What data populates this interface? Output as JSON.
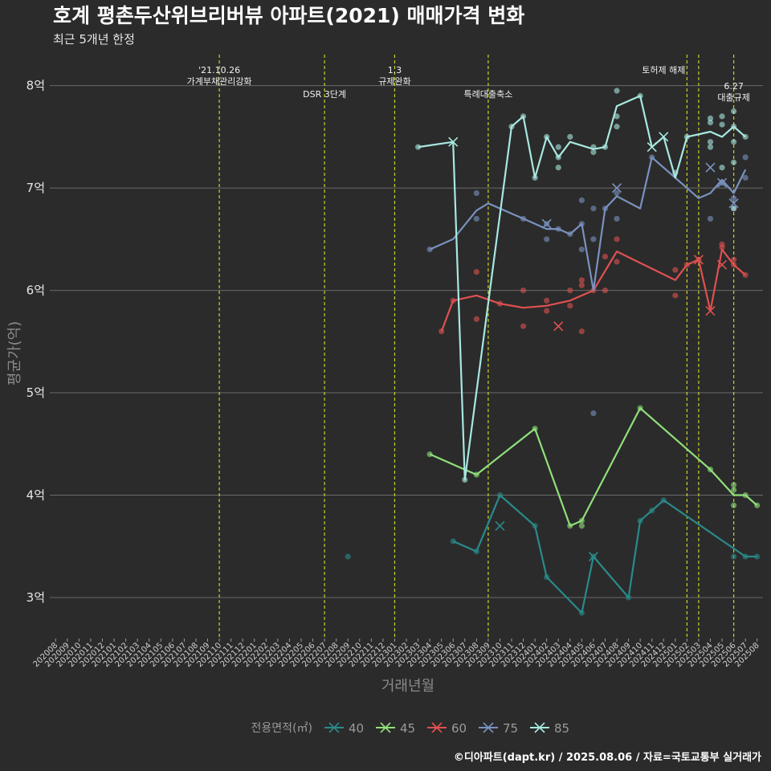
{
  "header": {
    "title": "호계 평촌두산위브리버뷰 아파트(2021) 매매가격 변화",
    "subtitle": "최근 5개년 한정"
  },
  "caption": "©디아파트(dapt.kr) / 2025.08.06 / 자료=국토교통부 실거래가",
  "chart_data": {
    "type": "line",
    "xlabel": "거래년월",
    "ylabel": "평균가(억)",
    "ylim": [
      2.6,
      8.35
    ],
    "yticks": [
      3,
      4,
      5,
      6,
      7,
      8
    ],
    "ytick_labels": [
      "3억",
      "4억",
      "5억",
      "6억",
      "7억",
      "8억"
    ],
    "x_categories": [
      "202008",
      "202009",
      "202010",
      "202011",
      "202012",
      "202101",
      "202102",
      "202103",
      "202104",
      "202105",
      "202106",
      "202107",
      "202108",
      "202109",
      "202110",
      "202111",
      "202112",
      "202201",
      "202202",
      "202203",
      "202204",
      "202205",
      "202206",
      "202207",
      "202208",
      "202209",
      "202210",
      "202211",
      "202212",
      "202301",
      "202302",
      "202303",
      "202304",
      "202305",
      "202306",
      "202307",
      "202308",
      "202309",
      "202310",
      "202311",
      "202312",
      "202401",
      "202402",
      "202403",
      "202404",
      "202405",
      "202406",
      "202407",
      "202408",
      "202409",
      "202410",
      "202411",
      "202412",
      "202501",
      "202502",
      "202503",
      "202504",
      "202505",
      "202506",
      "202507",
      "202508"
    ],
    "events": [
      {
        "x": "202110",
        "label": "'21.10.26\n가계부채관리강화",
        "row": 0
      },
      {
        "x": "202207",
        "label": "DSR 3단계",
        "row": 1
      },
      {
        "x": "202301",
        "label": "1.3\n규제완화",
        "row": 0
      },
      {
        "x": "202309",
        "label": "특례대출축소",
        "row": 1
      },
      {
        "x": "202502",
        "label": "토허제 해제",
        "row": 0,
        "anchor": "end"
      },
      {
        "x": "202503",
        "label": "",
        "row": 0
      },
      {
        "x": "202506",
        "label": "6.27\n대출규제",
        "row": 2
      }
    ],
    "legend_title": "전용면적(㎡)",
    "series": [
      {
        "name": "40",
        "color": "#2a8a8a",
        "line": [
          [
            "202306",
            3.55
          ],
          [
            "202308",
            3.45
          ],
          [
            "202310",
            4.0
          ],
          [
            "202401",
            3.7
          ],
          [
            "202402",
            3.2
          ],
          [
            "202405",
            2.85
          ],
          [
            "202406",
            3.4
          ],
          [
            "202409",
            3.0
          ],
          [
            "202410",
            3.75
          ],
          [
            "202411",
            3.85
          ],
          [
            "202412",
            3.95
          ],
          [
            "202507",
            3.4
          ],
          [
            "202508",
            3.4
          ]
        ],
        "points": [
          [
            "202209",
            3.4
          ],
          [
            "202306",
            3.55
          ],
          [
            "202308",
            3.45
          ],
          [
            "202310",
            4.0
          ],
          [
            "202401",
            3.7
          ],
          [
            "202402",
            3.2
          ],
          [
            "202405",
            2.85
          ],
          [
            "202406",
            3.4
          ],
          [
            "202409",
            3.0
          ],
          [
            "202410",
            3.75
          ],
          [
            "202411",
            3.85
          ],
          [
            "202412",
            3.95
          ],
          [
            "202506",
            3.4
          ],
          [
            "202507",
            3.4
          ],
          [
            "202508",
            3.4
          ]
        ],
        "crosses": [
          [
            "202310",
            3.7
          ],
          [
            "202406",
            3.4
          ]
        ]
      },
      {
        "name": "45",
        "color": "#90e07a",
        "line": [
          [
            "202304",
            4.4
          ],
          [
            "202307",
            4.25
          ],
          [
            "202308",
            4.2
          ],
          [
            "202401",
            4.65
          ],
          [
            "202404",
            3.7
          ],
          [
            "202405",
            3.75
          ],
          [
            "202410",
            4.85
          ],
          [
            "202504",
            4.25
          ],
          [
            "202506",
            4.0
          ],
          [
            "202507",
            4.0
          ],
          [
            "202508",
            3.9
          ]
        ],
        "points": [
          [
            "202304",
            4.4
          ],
          [
            "202308",
            4.2
          ],
          [
            "202401",
            4.65
          ],
          [
            "202404",
            3.7
          ],
          [
            "202405",
            3.7
          ],
          [
            "202405",
            3.75
          ],
          [
            "202410",
            4.85
          ],
          [
            "202504",
            4.25
          ],
          [
            "202506",
            3.9
          ],
          [
            "202506",
            4.05
          ],
          [
            "202506",
            4.1
          ],
          [
            "202507",
            4.0
          ],
          [
            "202508",
            3.9
          ]
        ],
        "crosses": []
      },
      {
        "name": "60",
        "color": "#e05050",
        "line": [
          [
            "202305",
            5.6
          ],
          [
            "202306",
            5.9
          ],
          [
            "202308",
            5.95
          ],
          [
            "202310",
            5.87
          ],
          [
            "202312",
            5.83
          ],
          [
            "202402",
            5.85
          ],
          [
            "202404",
            5.9
          ],
          [
            "202406",
            6.0
          ],
          [
            "202408",
            6.38
          ],
          [
            "202501",
            6.1
          ],
          [
            "202502",
            6.25
          ],
          [
            "202503",
            6.3
          ],
          [
            "202504",
            5.8
          ],
          [
            "202505",
            6.4
          ],
          [
            "202506",
            6.25
          ],
          [
            "202507",
            6.15
          ]
        ],
        "points": [
          [
            "202305",
            5.6
          ],
          [
            "202306",
            5.9
          ],
          [
            "202308",
            6.18
          ],
          [
            "202308",
            5.72
          ],
          [
            "202310",
            5.87
          ],
          [
            "202312",
            6.0
          ],
          [
            "202312",
            5.65
          ],
          [
            "202402",
            5.9
          ],
          [
            "202402",
            5.8
          ],
          [
            "202404",
            6.0
          ],
          [
            "202404",
            5.85
          ],
          [
            "202405",
            6.1
          ],
          [
            "202405",
            5.6
          ],
          [
            "202405",
            6.05
          ],
          [
            "202406",
            6.0
          ],
          [
            "202407",
            6.33
          ],
          [
            "202407",
            6.0
          ],
          [
            "202408",
            6.5
          ],
          [
            "202408",
            6.28
          ],
          [
            "202501",
            6.2
          ],
          [
            "202501",
            5.95
          ],
          [
            "202502",
            6.25
          ],
          [
            "202503",
            6.3
          ],
          [
            "202505",
            6.45
          ],
          [
            "202505",
            6.42
          ],
          [
            "202506",
            6.3
          ],
          [
            "202506",
            6.25
          ],
          [
            "202507",
            6.15
          ]
        ],
        "crosses": [
          [
            "202403",
            5.65
          ],
          [
            "202503",
            6.3
          ],
          [
            "202504",
            5.8
          ],
          [
            "202505",
            6.25
          ]
        ]
      },
      {
        "name": "75",
        "color": "#7a92c0",
        "line": [
          [
            "202304",
            6.4
          ],
          [
            "202306",
            6.5
          ],
          [
            "202308",
            6.78
          ],
          [
            "202309",
            6.85
          ],
          [
            "202312",
            6.7
          ],
          [
            "202402",
            6.6
          ],
          [
            "202403",
            6.6
          ],
          [
            "202404",
            6.55
          ],
          [
            "202405",
            6.65
          ],
          [
            "202406",
            6.0
          ],
          [
            "202407",
            6.8
          ],
          [
            "202408",
            6.92
          ],
          [
            "202410",
            6.8
          ],
          [
            "202411",
            7.3
          ],
          [
            "202503",
            6.9
          ],
          [
            "202504",
            6.95
          ],
          [
            "202505",
            7.08
          ],
          [
            "202506",
            6.95
          ],
          [
            "202507",
            7.18
          ]
        ],
        "points": [
          [
            "202304",
            6.4
          ],
          [
            "202308",
            6.95
          ],
          [
            "202308",
            6.7
          ],
          [
            "202312",
            6.7
          ],
          [
            "202402",
            6.65
          ],
          [
            "202402",
            6.5
          ],
          [
            "202403",
            6.6
          ],
          [
            "202404",
            6.55
          ],
          [
            "202405",
            6.88
          ],
          [
            "202405",
            6.4
          ],
          [
            "202405",
            6.65
          ],
          [
            "202406",
            6.8
          ],
          [
            "202406",
            6.5
          ],
          [
            "202406",
            4.8
          ],
          [
            "202407",
            6.8
          ],
          [
            "202408",
            6.7
          ],
          [
            "202408",
            6.95
          ],
          [
            "202411",
            7.3
          ],
          [
            "202504",
            6.7
          ],
          [
            "202505",
            7.05
          ],
          [
            "202506",
            6.9
          ],
          [
            "202506",
            6.8
          ],
          [
            "202507",
            7.1
          ],
          [
            "202507",
            7.3
          ]
        ],
        "crosses": [
          [
            "202402",
            6.65
          ],
          [
            "202408",
            7.0
          ],
          [
            "202504",
            7.2
          ],
          [
            "202505",
            7.05
          ],
          [
            "202506",
            6.85
          ]
        ]
      },
      {
        "name": "85",
        "color": "#a8e8e0",
        "line": [
          [
            "202303",
            7.4
          ],
          [
            "202306",
            7.45
          ],
          [
            "202307",
            4.15
          ],
          [
            "202311",
            7.6
          ],
          [
            "202312",
            7.7
          ],
          [
            "202401",
            7.1
          ],
          [
            "202402",
            7.5
          ],
          [
            "202403",
            7.3
          ],
          [
            "202404",
            7.45
          ],
          [
            "202406",
            7.38
          ],
          [
            "202407",
            7.4
          ],
          [
            "202408",
            7.8
          ],
          [
            "202410",
            7.9
          ],
          [
            "202411",
            7.4
          ],
          [
            "202412",
            7.5
          ],
          [
            "202501",
            7.1
          ],
          [
            "202502",
            7.5
          ],
          [
            "202504",
            7.55
          ],
          [
            "202505",
            7.5
          ],
          [
            "202506",
            7.6
          ],
          [
            "202507",
            7.5
          ]
        ],
        "points": [
          [
            "202303",
            7.4
          ],
          [
            "202307",
            4.15
          ],
          [
            "202311",
            7.6
          ],
          [
            "202312",
            7.7
          ],
          [
            "202401",
            7.1
          ],
          [
            "202402",
            7.5
          ],
          [
            "202403",
            7.3
          ],
          [
            "202403",
            7.4
          ],
          [
            "202403",
            7.2
          ],
          [
            "202404",
            7.5
          ],
          [
            "202406",
            7.4
          ],
          [
            "202406",
            7.35
          ],
          [
            "202407",
            7.4
          ],
          [
            "202408",
            7.95
          ],
          [
            "202408",
            7.7
          ],
          [
            "202408",
            7.6
          ],
          [
            "202410",
            7.9
          ],
          [
            "202501",
            7.15
          ],
          [
            "202502",
            7.5
          ],
          [
            "202504",
            7.68
          ],
          [
            "202504",
            7.64
          ],
          [
            "202504",
            7.45
          ],
          [
            "202504",
            7.4
          ],
          [
            "202505",
            7.7
          ],
          [
            "202505",
            7.62
          ],
          [
            "202505",
            7.2
          ],
          [
            "202506",
            7.75
          ],
          [
            "202506",
            7.6
          ],
          [
            "202506",
            7.45
          ],
          [
            "202506",
            7.25
          ],
          [
            "202506",
            6.8
          ],
          [
            "202507",
            7.5
          ]
        ],
        "crosses": [
          [
            "202306",
            7.45
          ],
          [
            "202411",
            7.4
          ],
          [
            "202412",
            7.5
          ]
        ]
      }
    ]
  }
}
